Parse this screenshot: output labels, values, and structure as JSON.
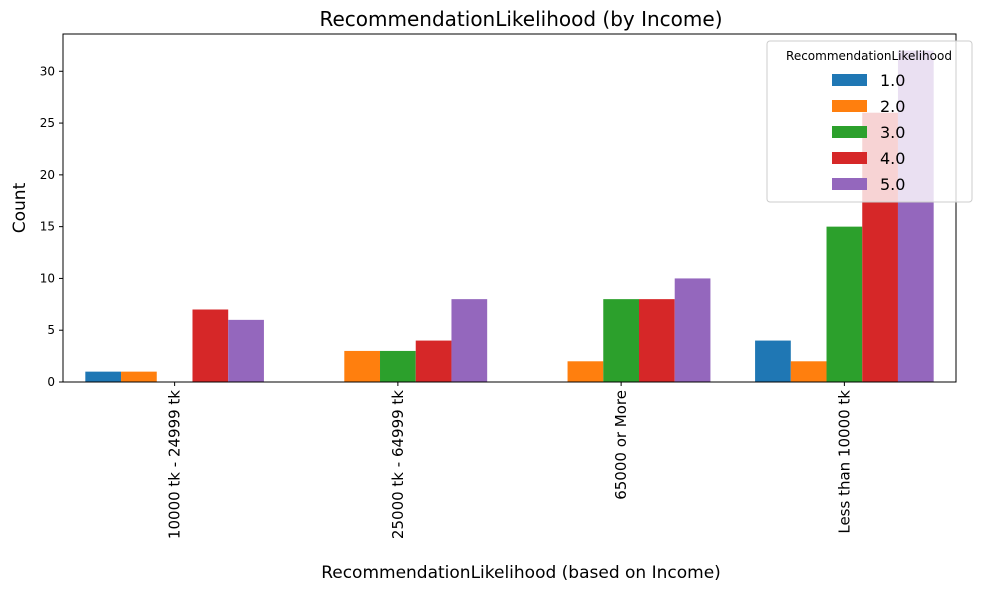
{
  "chart_data": {
    "type": "bar",
    "title": "RecommendationLikelihood (by Income)",
    "xlabel": "RecommendationLikelihood (based on Income)",
    "ylabel": "Count",
    "categories": [
      "10000 tk - 24999 tk",
      "25000 tk - 64999 tk",
      "65000 or More",
      "Less than 10000 tk"
    ],
    "ylim": [
      0,
      33.6
    ],
    "yticks": [
      0,
      5,
      10,
      15,
      20,
      25,
      30
    ],
    "legend": {
      "title": "RecommendationLikelihood",
      "placement": "top-right"
    },
    "series": [
      {
        "name": "1.0",
        "color": "#1f77b4",
        "values": [
          1,
          0,
          0,
          4
        ]
      },
      {
        "name": "2.0",
        "color": "#ff7f0e",
        "values": [
          1,
          3,
          2,
          2
        ]
      },
      {
        "name": "3.0",
        "color": "#2ca02c",
        "values": [
          0,
          3,
          8,
          15
        ]
      },
      {
        "name": "4.0",
        "color": "#d62728",
        "values": [
          7,
          4,
          8,
          26
        ]
      },
      {
        "name": "5.0",
        "color": "#9467bd",
        "values": [
          6,
          8,
          10,
          32
        ]
      }
    ]
  }
}
